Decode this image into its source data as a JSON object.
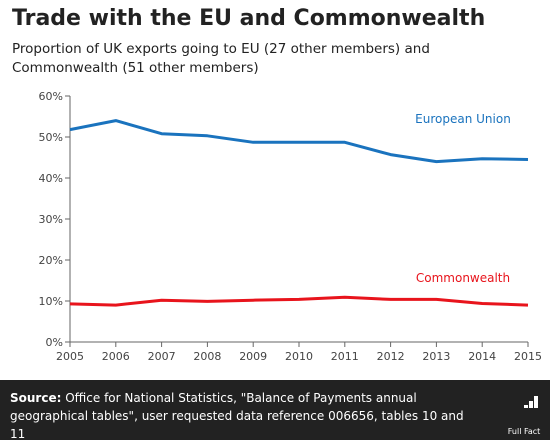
{
  "title": "Trade with the EU and Commonwealth",
  "subtitle": "Proportion of UK exports going to EU (27 other members) and Commonwealth (51 other members)",
  "footer": {
    "source_label": "Source:",
    "source_text": "Office for National Statistics, \"Balance of Payments annual geographical tables\", user requested data reference 006656, tables 10 and 11",
    "logo_text": "Full Fact"
  },
  "colors": {
    "eu": "#1a73be",
    "commonwealth": "#e8141c",
    "axis": "#666666",
    "text": "#222222",
    "footer_bg": "#222222"
  },
  "chart_data": {
    "type": "line",
    "title": "Trade with the EU and Commonwealth",
    "subtitle": "Proportion of UK exports going to EU (27 other members) and Commonwealth (51 other members)",
    "xlabel": "",
    "ylabel": "",
    "x": [
      "2005",
      "2006",
      "2007",
      "2008",
      "2009",
      "2010",
      "2011",
      "2012",
      "2013",
      "2014",
      "2015"
    ],
    "yticks": [
      "0%",
      "10%",
      "20%",
      "30%",
      "40%",
      "50%",
      "60%"
    ],
    "ylim": [
      0,
      60
    ],
    "grid": false,
    "series": [
      {
        "name": "European Union",
        "color": "#1a73be",
        "values": [
          51.8,
          54.0,
          50.8,
          50.3,
          48.7,
          48.7,
          48.7,
          45.7,
          44.0,
          44.7,
          44.5
        ]
      },
      {
        "name": "Commonwealth",
        "color": "#e8141c",
        "values": [
          9.3,
          9.0,
          10.2,
          9.9,
          10.2,
          10.4,
          10.9,
          10.4,
          10.4,
          9.4,
          9.0
        ]
      }
    ]
  }
}
